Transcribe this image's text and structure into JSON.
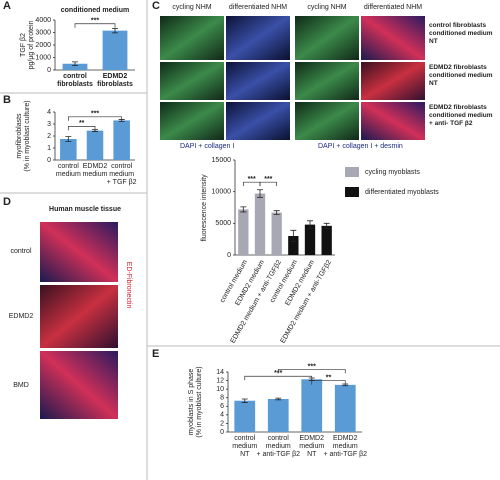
{
  "panels": {
    "letters": [
      "A",
      "B",
      "C",
      "D",
      "E"
    ],
    "C": {
      "columns": [
        "cycling NHM",
        "differentiated NHM",
        "cycling NHM",
        "differentiated NHM"
      ],
      "rows": [
        "control fibroblasts\nconditioned medium\nNT",
        "EDMD2 fibroblasts\nconditioned medium\nNT",
        "EDMD2 fibroblasts\nconditioned medium\n+ anti- TGF β2"
      ],
      "stains": [
        "DAPI + collagen I",
        "DAPI + collagen I + desmin"
      ]
    },
    "D": {
      "title": "Human muscle tissue",
      "rows": [
        "control",
        "EDMD2",
        "BMD"
      ],
      "stain": "ED-Fibronectin"
    }
  },
  "chart_data": [
    {
      "type": "bar",
      "title": "conditioned medium",
      "y_label": "TGF β2\npg/µg of protein",
      "categories": [
        "control\nfibroblasts",
        "EDMD2\nfibroblasts"
      ],
      "values": [
        500,
        3150
      ],
      "errors": [
        150,
        180
      ],
      "color": "#5b9bd5",
      "ylim": [
        0,
        4000
      ],
      "yticks": [
        0,
        1000,
        2000,
        3000,
        4000
      ],
      "annotations": [
        "***"
      ]
    },
    {
      "type": "bar",
      "y_label": "myofibroblasts\n(% in myoblast culture)",
      "categories": [
        "control\nmedium",
        "EDMD2\nmedium",
        "control\nmedium\n+ TGF β2"
      ],
      "values": [
        1.75,
        2.45,
        3.3
      ],
      "errors": [
        0.2,
        0.08,
        0.08
      ],
      "color": "#5b9bd5",
      "ylim": [
        0,
        4
      ],
      "yticks": [
        0,
        1,
        2,
        3,
        4
      ],
      "annotations": [
        "**",
        "***"
      ]
    },
    {
      "type": "bar",
      "y_label": "fluorescence intensity",
      "categories": [
        "control medium",
        "EDMD2 medium",
        "EDMD2 medium + anti-TGFβ2",
        "control medium",
        "EDMD2 medium",
        "EDMD2 medium + anti-TGFβ2"
      ],
      "series": [
        {
          "name": "cycling myoblasts",
          "color": "#a8a8b4",
          "values": [
            7200,
            9700,
            6700,
            null,
            null,
            null
          ],
          "errors": [
            400,
            600,
            300,
            null,
            null,
            null
          ]
        },
        {
          "name": "differentiated myoblasts",
          "color": "#111111",
          "values": [
            null,
            null,
            null,
            3000,
            4800,
            4600
          ],
          "errors": [
            null,
            null,
            null,
            900,
            600,
            400
          ]
        }
      ],
      "ylim": [
        0,
        15000
      ],
      "yticks": [
        0,
        5000,
        10000,
        15000
      ],
      "annotations": [
        "***",
        "***"
      ]
    },
    {
      "type": "bar",
      "y_label": "myoblasts in S phase\n(% in myoblast culture)",
      "categories": [
        "control\nmedium\nNT",
        "control\nmedium\n+ anti-TGF β2",
        "EDMD2\nmedium\nNT",
        "EDMD2\nmedium\n+ anti-TGF β2"
      ],
      "values": [
        7.3,
        7.7,
        12.3,
        11.0
      ],
      "errors": [
        0.4,
        0.2,
        0.3,
        0.2
      ],
      "color": "#5b9bd5",
      "ylim": [
        0,
        14
      ],
      "yticks": [
        0,
        2,
        4,
        6,
        8,
        10,
        12,
        14
      ],
      "annotations": [
        "***",
        "***",
        "**"
      ]
    }
  ]
}
